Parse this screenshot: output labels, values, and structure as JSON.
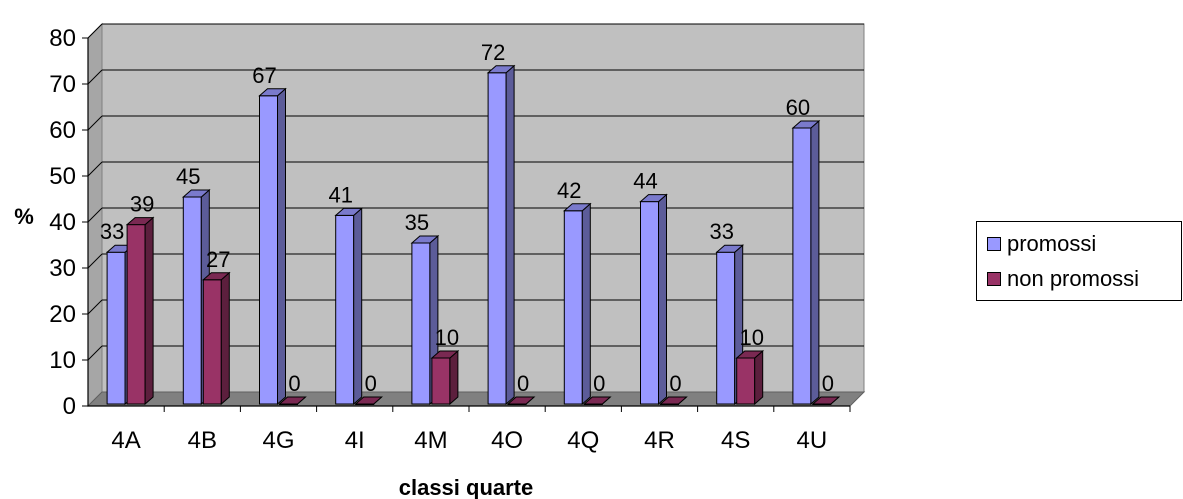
{
  "chart_data": {
    "type": "bar",
    "categories": [
      "4A",
      "4B",
      "4G",
      "4I",
      "4M",
      "4O",
      "4Q",
      "4R",
      "4S",
      "4U"
    ],
    "series": [
      {
        "name": "promossi",
        "values": [
          33,
          45,
          67,
          41,
          35,
          72,
          42,
          44,
          33,
          60
        ],
        "color": "#9999ff"
      },
      {
        "name": "non promossi",
        "values": [
          39,
          27,
          0,
          0,
          10,
          0,
          0,
          0,
          10,
          0
        ],
        "color": "#993366"
      }
    ],
    "xlabel": "classi quarte",
    "ylabel": "%",
    "ylim": [
      0,
      80
    ],
    "yticks": [
      0,
      10,
      20,
      30,
      40,
      50,
      60,
      70,
      80
    ],
    "grid": true,
    "style": "3d-bar",
    "wall_color": "#c0c0c0",
    "legend_position": "right"
  }
}
